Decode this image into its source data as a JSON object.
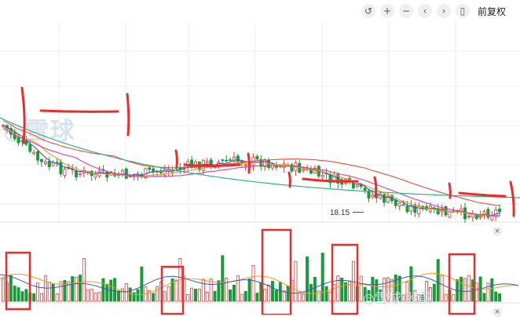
{
  "toolbar": {
    "reset_icon": "↺",
    "zoom_in_icon": "+",
    "zoom_out_icon": "−",
    "prev_icon": "‹",
    "next_icon": "›",
    "candle_icon": "▯",
    "adjust_label": "前复权"
  },
  "watermark_text": "◎雪球",
  "watermark_small": "◎雪球 股票",
  "kline": {
    "low_label": "18.15"
  },
  "close_icon": "×",
  "colors": {
    "up": "#e23b3b",
    "down": "#1a9a3c",
    "ma5": "#3a56c8",
    "ma10": "#f39b1a",
    "ma20": "#d13fb0",
    "ma30": "#e8503a",
    "ma60": "#19b37c",
    "annot": "#ee2a2a",
    "grid": "#eeeeee"
  }
}
